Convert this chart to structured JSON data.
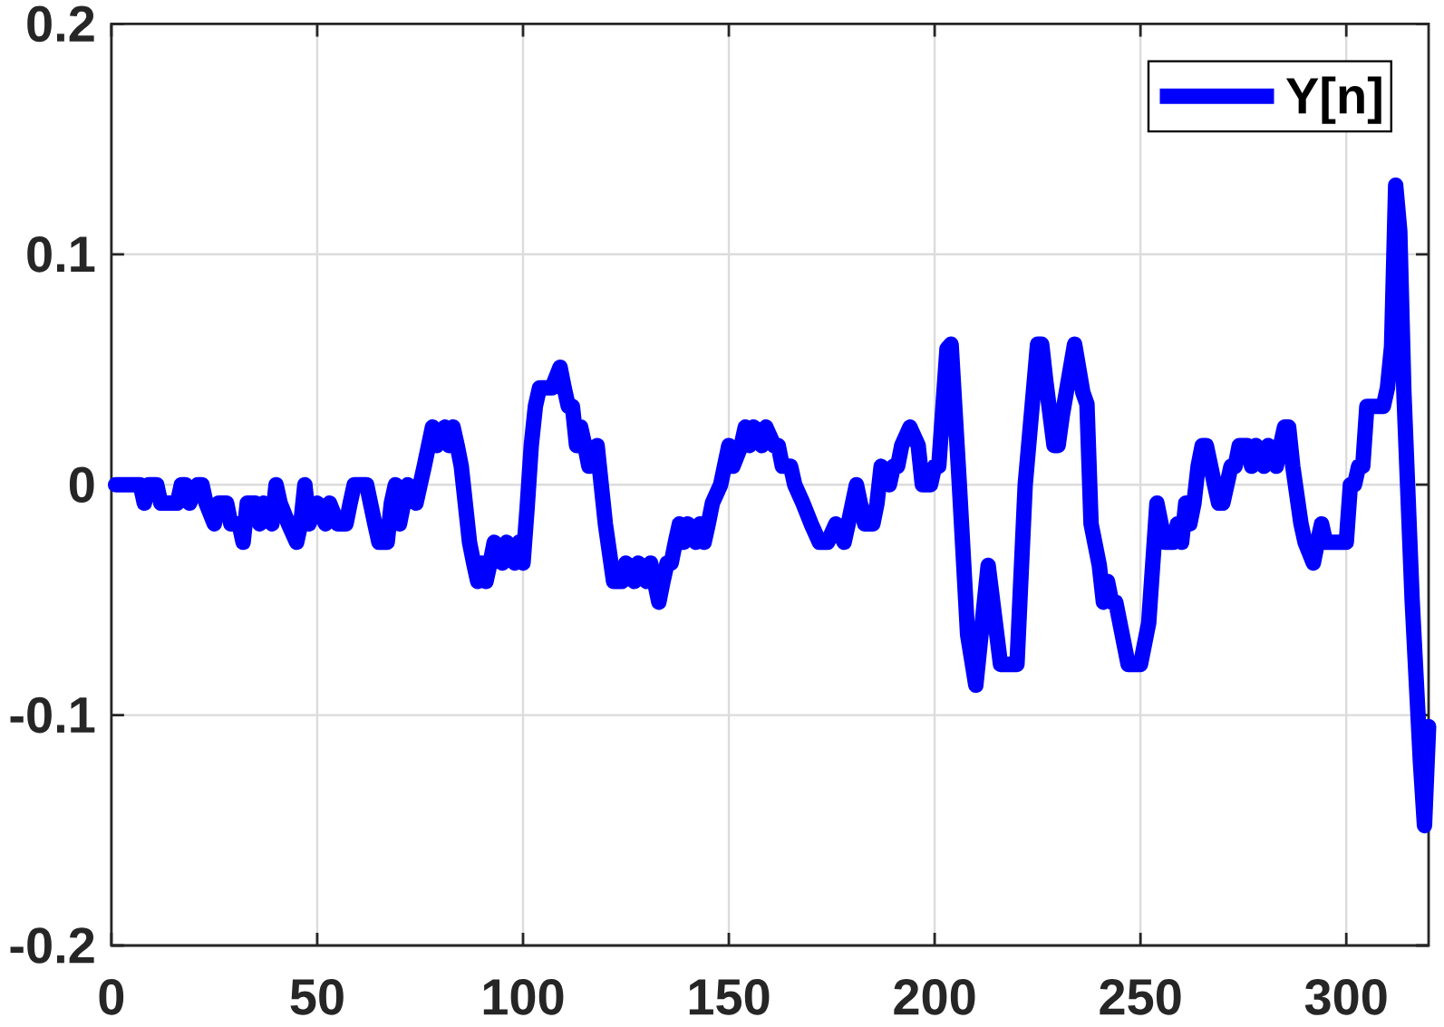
{
  "chart_data": {
    "type": "line",
    "x": [
      1,
      7,
      8,
      9,
      11,
      12,
      16,
      17,
      18,
      19,
      21,
      22,
      23,
      25,
      26,
      28,
      29,
      31,
      32,
      33,
      35,
      36,
      37,
      39,
      40,
      41,
      43,
      45,
      46,
      47,
      48,
      50,
      52,
      53,
      55,
      57,
      58,
      59,
      62,
      64,
      65,
      67,
      68,
      69,
      70,
      71,
      72,
      74,
      75,
      76,
      78,
      79,
      81,
      82,
      83,
      84,
      85,
      87,
      88,
      89,
      90,
      91,
      92,
      93,
      95,
      96,
      98,
      99,
      100,
      101,
      102,
      103,
      104,
      107,
      109,
      110,
      111,
      112,
      113,
      114,
      115,
      116,
      118,
      119,
      120,
      122,
      124,
      125,
      127,
      128,
      130,
      131,
      133,
      134,
      135,
      136,
      137,
      138,
      139,
      140,
      142,
      143,
      144,
      145,
      146,
      148,
      150,
      151,
      153,
      154,
      155,
      156,
      158,
      159,
      161,
      162,
      163,
      165,
      166,
      168,
      170,
      172,
      174,
      176,
      178,
      179,
      181,
      183,
      185,
      186,
      187,
      189,
      190,
      191,
      192,
      194,
      196,
      197,
      199,
      200,
      201,
      203,
      204,
      206,
      208,
      210,
      213,
      216,
      220,
      222,
      225,
      226,
      227,
      229,
      230,
      231,
      234,
      236,
      237,
      238,
      240,
      241,
      242,
      243,
      244,
      247,
      250,
      252,
      254,
      255,
      256,
      258,
      259,
      260,
      261,
      262,
      263,
      264,
      265,
      266,
      268,
      269,
      270,
      271,
      272,
      273,
      274,
      276,
      277,
      278,
      280,
      281,
      283,
      284,
      285,
      286,
      287,
      289,
      290,
      292,
      293,
      294,
      295,
      300,
      301,
      302,
      303,
      304,
      305,
      309,
      310,
      311,
      312,
      313,
      314,
      316,
      318,
      319,
      320
    ],
    "series": [
      {
        "name": "Y[n]",
        "color": "#0000ff",
        "values": [
          0,
          0,
          -0.008,
          0,
          0,
          -0.008,
          -0.008,
          0,
          0,
          -0.008,
          0,
          0,
          -0.008,
          -0.017,
          -0.008,
          -0.008,
          -0.017,
          -0.017,
          -0.025,
          -0.008,
          -0.008,
          -0.017,
          -0.008,
          -0.017,
          0,
          -0.008,
          -0.017,
          -0.025,
          -0.017,
          0,
          -0.017,
          -0.008,
          -0.017,
          -0.008,
          -0.017,
          -0.017,
          -0.008,
          0,
          0,
          -0.017,
          -0.025,
          -0.025,
          -0.008,
          0,
          -0.017,
          -0.008,
          0,
          -0.008,
          0,
          0.008,
          0.025,
          0.017,
          0.025,
          0.017,
          0.025,
          0.017,
          0.008,
          -0.025,
          -0.034,
          -0.042,
          -0.034,
          -0.042,
          -0.034,
          -0.025,
          -0.034,
          -0.025,
          -0.034,
          -0.025,
          -0.034,
          -0.01,
          0.017,
          0.034,
          0.042,
          0.042,
          0.051,
          0.042,
          0.034,
          0.034,
          0.017,
          0.025,
          0.017,
          0.008,
          0.017,
          0,
          -0.017,
          -0.042,
          -0.042,
          -0.034,
          -0.042,
          -0.034,
          -0.042,
          -0.034,
          -0.051,
          -0.042,
          -0.034,
          -0.034,
          -0.025,
          -0.017,
          -0.025,
          -0.017,
          -0.025,
          -0.017,
          -0.025,
          -0.017,
          -0.008,
          0,
          0.017,
          0.008,
          0.017,
          0.025,
          0.017,
          0.025,
          0.017,
          0.025,
          0.017,
          0.017,
          0.008,
          0.008,
          0,
          -0.008,
          -0.017,
          -0.025,
          -0.025,
          -0.017,
          -0.025,
          -0.017,
          0,
          -0.017,
          -0.017,
          -0.008,
          0.008,
          0,
          0.008,
          0.008,
          0.017,
          0.025,
          0.017,
          0,
          0,
          0.008,
          0.008,
          0.059,
          0.061,
          0,
          -0.065,
          -0.087,
          -0.035,
          -0.078,
          -0.078,
          0,
          0.061,
          0.061,
          0.045,
          0.017,
          0.017,
          0.03,
          0.061,
          0.04,
          0.035,
          -0.017,
          -0.035,
          -0.051,
          -0.042,
          -0.051,
          -0.051,
          -0.078,
          -0.078,
          -0.06,
          -0.008,
          -0.017,
          -0.025,
          -0.025,
          -0.017,
          -0.025,
          -0.008,
          -0.017,
          -0.008,
          0.008,
          0.017,
          0.017,
          0,
          -0.008,
          -0.008,
          0,
          0.008,
          0.008,
          0.017,
          0.017,
          0.008,
          0.017,
          0.008,
          0.017,
          0.008,
          0.017,
          0.025,
          0.025,
          0.008,
          -0.017,
          -0.025,
          -0.034,
          -0.025,
          -0.017,
          -0.025,
          -0.025,
          0,
          0,
          0.008,
          0.008,
          0.034,
          0.034,
          0.042,
          0.06,
          0.13,
          0.11,
          0.04,
          -0.05,
          -0.12,
          -0.148,
          -0.105
        ]
      }
    ],
    "xlim": [
      0,
      320
    ],
    "ylim": [
      -0.2,
      0.2
    ],
    "xticks": [
      0,
      50,
      100,
      150,
      200,
      250,
      300
    ],
    "yticks": [
      -0.2,
      -0.1,
      0,
      0.1,
      0.2
    ],
    "grid": true,
    "legend": "top right",
    "marker": "none",
    "line_style": "solid"
  }
}
